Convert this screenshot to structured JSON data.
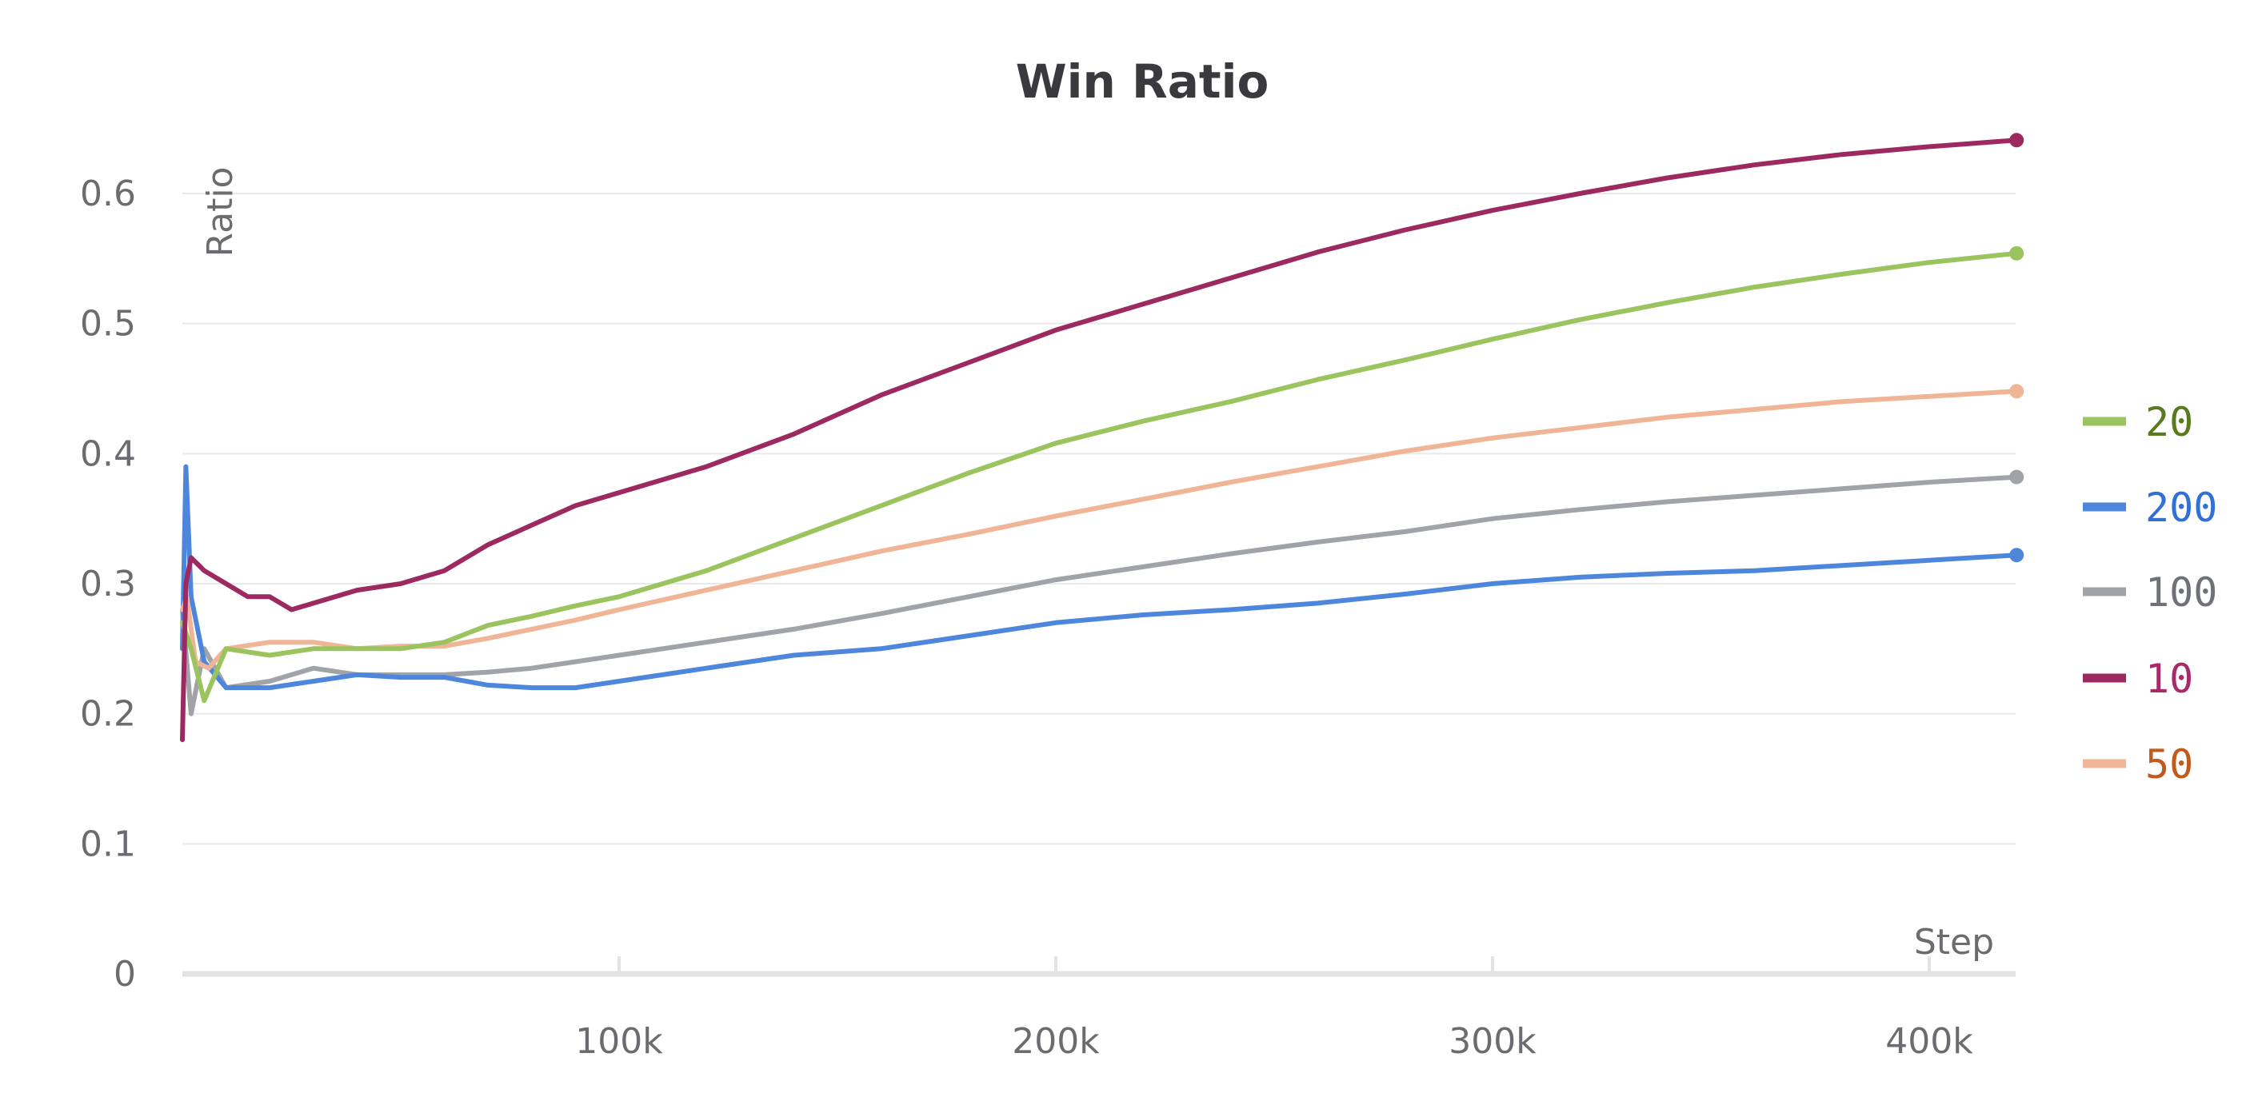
{
  "chart_data": {
    "type": "line",
    "title": "Win Ratio",
    "xlabel": "Step",
    "ylabel": "Ratio",
    "xlim": [
      0,
      420000
    ],
    "ylim": [
      0,
      0.6
    ],
    "x_ticks": [
      100000,
      200000,
      300000,
      400000
    ],
    "x_tick_labels": [
      "100k",
      "200k",
      "300k",
      "400k"
    ],
    "y_ticks": [
      0,
      0.1,
      0.2,
      0.3,
      0.4,
      0.5,
      0.6
    ],
    "y_tick_labels": [
      "0",
      "0.1",
      "0.2",
      "0.3",
      "0.4",
      "0.5",
      "0.6"
    ],
    "grid": true,
    "legend_position": "right",
    "series": [
      {
        "name": "20",
        "color": "#9bc45e",
        "label_color": "#5a7a1e",
        "x": [
          0,
          2000,
          5000,
          10000,
          20000,
          30000,
          40000,
          50000,
          60000,
          70000,
          80000,
          90000,
          100000,
          120000,
          140000,
          160000,
          180000,
          200000,
          220000,
          240000,
          260000,
          280000,
          300000,
          320000,
          340000,
          360000,
          380000,
          400000,
          420000
        ],
        "y": [
          0.27,
          0.25,
          0.21,
          0.25,
          0.245,
          0.25,
          0.25,
          0.25,
          0.255,
          0.268,
          0.275,
          0.283,
          0.29,
          0.31,
          0.335,
          0.36,
          0.385,
          0.408,
          0.425,
          0.44,
          0.457,
          0.472,
          0.488,
          0.503,
          0.516,
          0.528,
          0.538,
          0.547,
          0.554
        ]
      },
      {
        "name": "200",
        "color": "#4e86dc",
        "label_color": "#3370d4",
        "x": [
          0,
          800,
          2000,
          5000,
          10000,
          20000,
          30000,
          40000,
          50000,
          60000,
          70000,
          80000,
          90000,
          100000,
          120000,
          140000,
          160000,
          180000,
          200000,
          220000,
          240000,
          260000,
          280000,
          300000,
          320000,
          340000,
          360000,
          380000,
          400000,
          420000
        ],
        "y": [
          0.25,
          0.39,
          0.29,
          0.24,
          0.22,
          0.22,
          0.225,
          0.23,
          0.228,
          0.228,
          0.222,
          0.22,
          0.22,
          0.225,
          0.235,
          0.245,
          0.25,
          0.26,
          0.27,
          0.276,
          0.28,
          0.285,
          0.292,
          0.3,
          0.305,
          0.308,
          0.31,
          0.314,
          0.318,
          0.322
        ]
      },
      {
        "name": "100",
        "color": "#a0a3a8",
        "label_color": "#6e7176",
        "x": [
          0,
          2000,
          5000,
          10000,
          20000,
          30000,
          40000,
          50000,
          60000,
          70000,
          80000,
          90000,
          100000,
          120000,
          140000,
          160000,
          180000,
          200000,
          220000,
          240000,
          260000,
          280000,
          300000,
          320000,
          340000,
          360000,
          380000,
          400000,
          420000
        ],
        "y": [
          0.28,
          0.2,
          0.25,
          0.22,
          0.225,
          0.235,
          0.23,
          0.23,
          0.23,
          0.232,
          0.235,
          0.24,
          0.245,
          0.255,
          0.265,
          0.277,
          0.29,
          0.303,
          0.313,
          0.323,
          0.332,
          0.34,
          0.35,
          0.357,
          0.363,
          0.368,
          0.373,
          0.378,
          0.382
        ]
      },
      {
        "name": "10",
        "color": "#9c2a60",
        "label_color": "#a82a68",
        "x": [
          0,
          800,
          2000,
          5000,
          10000,
          15000,
          20000,
          25000,
          30000,
          40000,
          50000,
          60000,
          70000,
          80000,
          90000,
          100000,
          120000,
          140000,
          160000,
          180000,
          200000,
          220000,
          240000,
          260000,
          280000,
          300000,
          320000,
          340000,
          360000,
          380000,
          400000,
          420000
        ],
        "y": [
          0.18,
          0.3,
          0.32,
          0.31,
          0.3,
          0.29,
          0.29,
          0.28,
          0.285,
          0.295,
          0.3,
          0.31,
          0.33,
          0.345,
          0.36,
          0.37,
          0.39,
          0.415,
          0.445,
          0.47,
          0.495,
          0.515,
          0.535,
          0.555,
          0.572,
          0.587,
          0.6,
          0.612,
          0.622,
          0.63,
          0.636,
          0.641
        ]
      },
      {
        "name": "50",
        "color": "#f0b596",
        "label_color": "#c25a1e",
        "x": [
          0,
          1000,
          3000,
          6000,
          10000,
          20000,
          30000,
          40000,
          50000,
          60000,
          70000,
          80000,
          90000,
          100000,
          120000,
          140000,
          160000,
          180000,
          200000,
          220000,
          240000,
          260000,
          280000,
          300000,
          320000,
          340000,
          360000,
          380000,
          400000,
          420000
        ],
        "y": [
          0.28,
          0.29,
          0.24,
          0.235,
          0.25,
          0.255,
          0.255,
          0.25,
          0.252,
          0.252,
          0.258,
          0.265,
          0.272,
          0.28,
          0.295,
          0.31,
          0.325,
          0.338,
          0.352,
          0.365,
          0.378,
          0.39,
          0.402,
          0.412,
          0.42,
          0.428,
          0.434,
          0.44,
          0.444,
          0.448
        ]
      }
    ]
  }
}
